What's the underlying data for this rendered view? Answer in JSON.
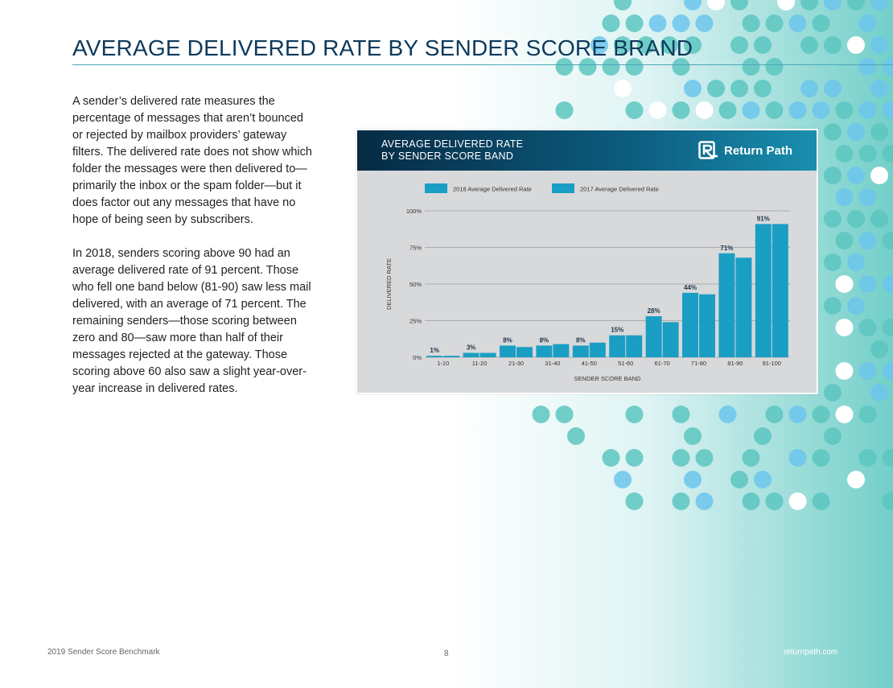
{
  "page": {
    "title": "AVERAGE DELIVERED RATE BY SENDER SCORE  BRAND",
    "paragraphs": [
      "A sender’s delivered rate measures the percentage of messages that aren’t bounced or rejected by mailbox providers’ gateway filters. The delivered rate does not show which folder the messages were then delivered to—primarily the inbox or the spam folder—but it does factor out any messages that have no hope of being seen by subscribers.",
      "In 2018, senders scoring above 90 had an average delivered rate of 91 percent. Those who fell one band below (81-90) saw less mail delivered, with an average of 71 percent. The remaining senders—those scoring between zero and 80—saw more than half of their messages rejected at the gateway. Those scoring above 60 also saw a slight year-over-year increase in delivered rates."
    ]
  },
  "chart_header": {
    "title_line1": "AVERAGE DELIVERED RATE",
    "title_line2": "BY SENDER SCORE BAND",
    "logo_text": "Return Path"
  },
  "chart_data": {
    "type": "bar",
    "title": "AVERAGE DELIVERED RATE BY SENDER SCORE BAND",
    "xlabel": "SENDER SCORE BAND",
    "ylabel": "DELIVERED RATE",
    "ylim": [
      0,
      100
    ],
    "yticks": [
      "0%",
      "25%",
      "50%",
      "75%",
      "100%"
    ],
    "categories": [
      "1-10",
      "11-20",
      "21-30",
      "31-40",
      "41-50",
      "51-60",
      "61-70",
      "71-80",
      "81-90",
      "91-100"
    ],
    "series": [
      {
        "name": "2018 Average Delivered Rate",
        "values": [
          1,
          3,
          8,
          8,
          8,
          15,
          28,
          44,
          71,
          91
        ]
      },
      {
        "name": "2017 Average Delivered Rate",
        "values": [
          1,
          3,
          7,
          9,
          10,
          15,
          24,
          43,
          68,
          91
        ]
      }
    ],
    "data_labels": [
      "1%",
      "3%",
      "8%",
      "8%",
      "8%",
      "15%",
      "28%",
      "44%",
      "71%",
      "91%"
    ],
    "colors": {
      "series_2018": "#1b9ec4",
      "series_2017": "#1b9ec4",
      "grid": "#a9abae",
      "axis_text": "#333333"
    },
    "legend_position": "top-left"
  },
  "footer": {
    "left": "2019 Sender Score Benchmark",
    "page_number": "8",
    "right": "returnpath.com"
  },
  "colors": {
    "title": "#0d3a5c",
    "teal": "#5cc6bf",
    "sky": "#6cc6ec"
  }
}
